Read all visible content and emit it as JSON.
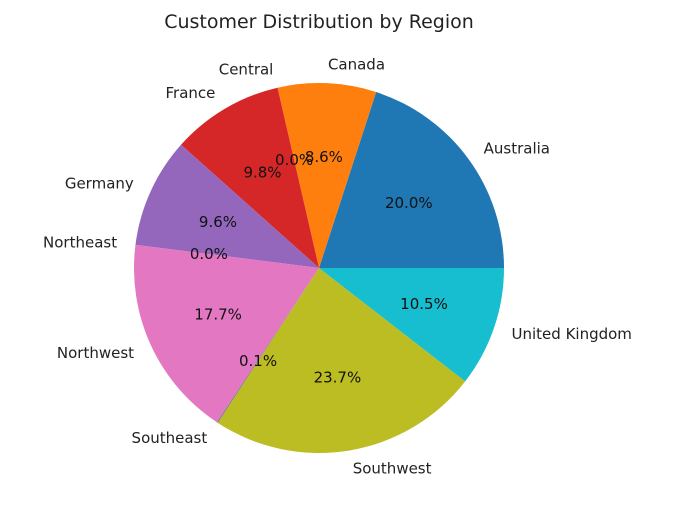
{
  "chart_data": {
    "type": "pie",
    "title": "Customer Distribution by Region",
    "categories": [
      "Australia",
      "Canada",
      "Central",
      "France",
      "Germany",
      "Northeast",
      "Northwest",
      "Southeast",
      "Southwest",
      "United Kingdom"
    ],
    "values": [
      20.0,
      8.6,
      0.0,
      9.8,
      9.6,
      0.0,
      17.7,
      0.1,
      23.7,
      10.5
    ],
    "value_labels": [
      "20.0%",
      "8.6%",
      "0.0%",
      "9.8%",
      "9.6%",
      "0.0%",
      "17.7%",
      "0.1%",
      "23.7%",
      "10.5%"
    ],
    "colors": [
      "#1f77b4",
      "#ff7f0e",
      "#2ca02c",
      "#d62728",
      "#9467bd",
      "#8c564b",
      "#e377c2",
      "#7f7f7f",
      "#bcbd22",
      "#17becf"
    ],
    "start_angle_deg": 0,
    "direction": "counterclockwise",
    "legend": "none",
    "grid": false
  }
}
